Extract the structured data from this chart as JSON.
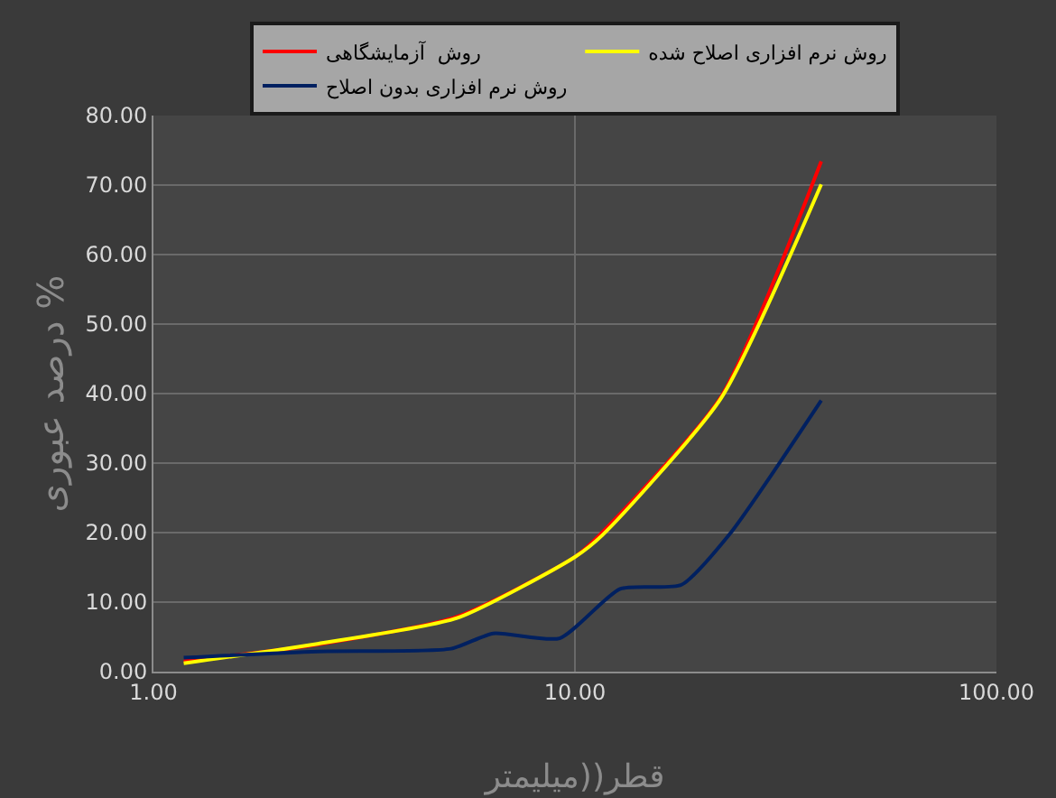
{
  "chart_data": {
    "type": "line",
    "xlabel": "قطر((میلیمتر",
    "ylabel": "درصد عبوری %",
    "log": "x",
    "grid": true,
    "legend": "top",
    "marker": "none",
    "line_style": "solid",
    "xlim": [
      1,
      100
    ],
    "xticks": [
      {
        "value": 1,
        "label": "1.00"
      },
      {
        "value": 10,
        "label": "10.00"
      },
      {
        "value": 100,
        "label": "100.00"
      }
    ],
    "ylim": [
      0,
      80
    ],
    "yticks": [
      {
        "value": 0,
        "label": "0.00"
      },
      {
        "value": 10,
        "label": "10.00"
      },
      {
        "value": 20,
        "label": "20.00"
      },
      {
        "value": 30,
        "label": "30.00"
      },
      {
        "value": 40,
        "label": "40.00"
      },
      {
        "value": 50,
        "label": "50.00"
      },
      {
        "value": 60,
        "label": "60.00"
      },
      {
        "value": 70,
        "label": "70.00"
      },
      {
        "value": 80,
        "label": "80.00"
      }
    ],
    "series": [
      {
        "name": "روش  آزمایشگاهی",
        "color": "#ff0000",
        "x": [
          1.18,
          2.45,
          5.25,
          10,
          11.6,
          22.2,
          38.4
        ],
        "values": [
          1.5,
          3.9,
          7.9,
          16.5,
          20.0,
          39.5,
          73.4
        ]
      },
      {
        "name": "روش نرم افزاری اصلاح شده",
        "color": "#ffff00",
        "x": [
          1.18,
          2.45,
          5.25,
          10,
          11.6,
          22.2,
          38.4
        ],
        "values": [
          1.2,
          4.0,
          7.7,
          16.5,
          19.6,
          39.3,
          70.1
        ]
      },
      {
        "name": "روش نرم افزاری بدون اصلاح",
        "color": "#002060",
        "x": [
          1.18,
          2.45,
          5.08,
          6.4,
          9.2,
          12.8,
          17.9,
          23.3,
          38.4
        ],
        "values": [
          2.0,
          2.9,
          3.3,
          5.5,
          4.8,
          11.9,
          12.5,
          19.8,
          39.0
        ]
      }
    ]
  }
}
